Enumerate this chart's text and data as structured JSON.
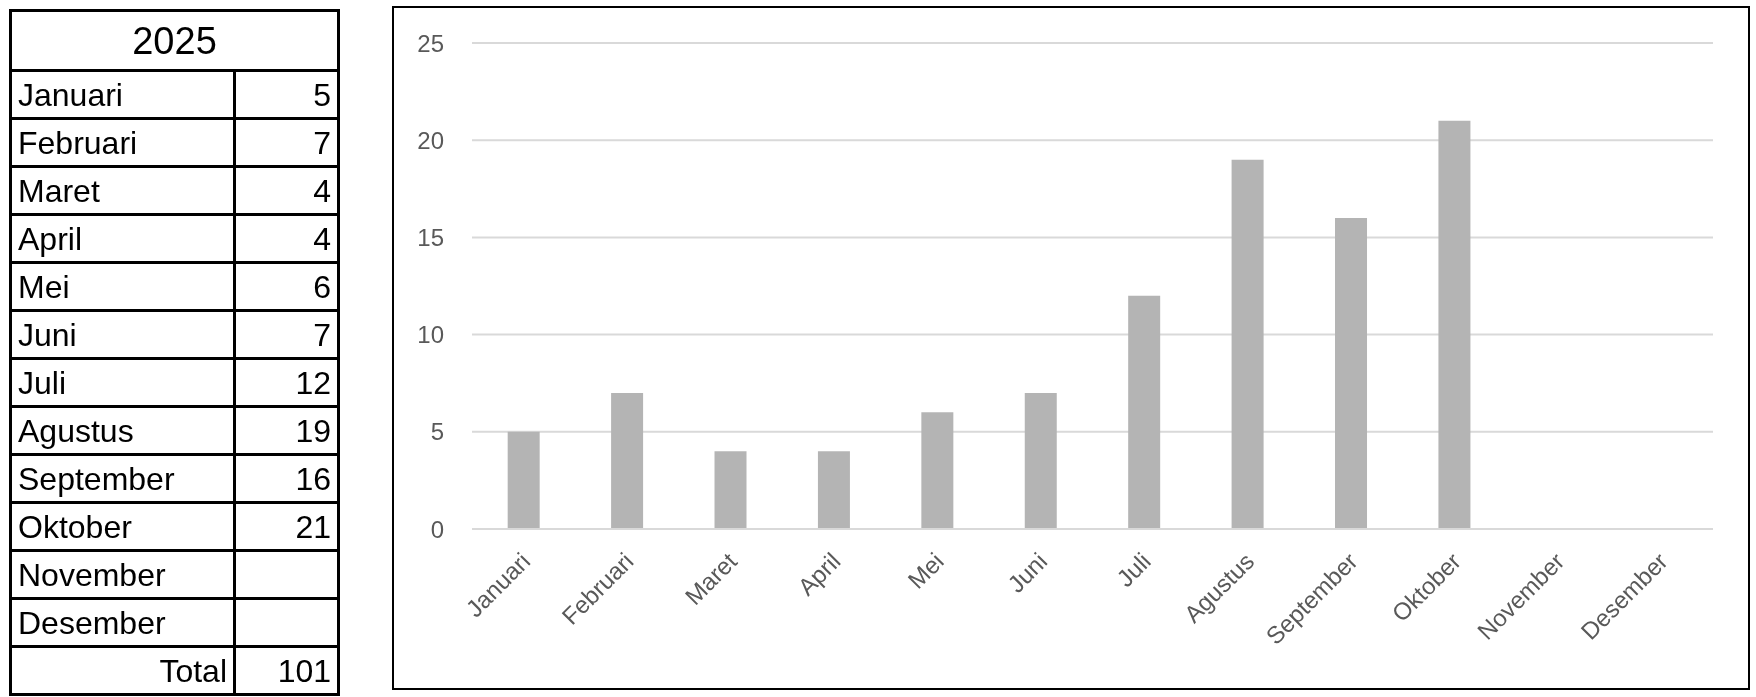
{
  "chart_data": [
    {
      "type": "other",
      "title": "2025",
      "categories": [
        "Januari",
        "Februari",
        "Maret",
        "April",
        "Mei",
        "Juni",
        "Juli",
        "Agustus",
        "September",
        "Oktober",
        "November",
        "Desember"
      ],
      "values": [
        5,
        7,
        4,
        4,
        6,
        7,
        12,
        19,
        16,
        21,
        null,
        null
      ],
      "data_labels": true,
      "annotations": [
        "Total",
        "101"
      ]
    },
    {
      "type": "bar",
      "categories": [
        "Januari",
        "Februari",
        "Maret",
        "April",
        "Mei",
        "Juni",
        "Juli",
        "Agustus",
        "September",
        "Oktober",
        "November",
        "Desember"
      ],
      "values": [
        5,
        7,
        4,
        4,
        6,
        7,
        12,
        19,
        16,
        21,
        null,
        null
      ],
      "color": "#b4b4b4",
      "ylim": [
        0,
        25
      ],
      "yticks": [
        0,
        5,
        10,
        15,
        20,
        25
      ],
      "grid": "y"
    }
  ]
}
